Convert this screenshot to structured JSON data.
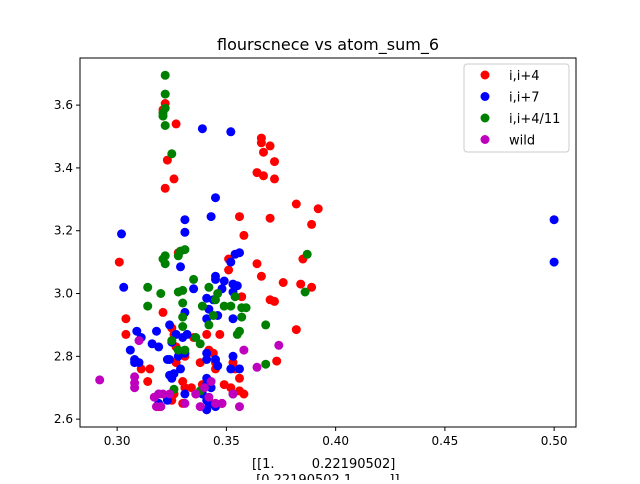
{
  "chart_data": {
    "type": "scatter",
    "title": "flourscnece vs atom_sum_6",
    "xlabel": "",
    "ylabel": "",
    "xlim": [
      0.283,
      0.51
    ],
    "ylim": [
      2.575,
      3.75
    ],
    "xticks": [
      0.3,
      0.35,
      0.4,
      0.45,
      0.5
    ],
    "xtick_labels": [
      "0.30",
      "0.35",
      "0.40",
      "0.45",
      "0.50"
    ],
    "yticks": [
      2.6,
      2.8,
      3.0,
      3.2,
      3.4,
      3.6
    ],
    "ytick_labels": [
      "2.6",
      "2.8",
      "3.0",
      "3.2",
      "3.4",
      "3.6"
    ],
    "grid": false,
    "legend_placement": "top-right",
    "annotation_lines": [
      "[[1.         0.22190502]",
      " [0.22190502 1.        ]]"
    ],
    "series": [
      {
        "name": "i,i+4",
        "color": "#ff0000",
        "points": [
          [
            0.322,
            3.605
          ],
          [
            0.321,
            3.585
          ],
          [
            0.327,
            3.54
          ],
          [
            0.323,
            3.425
          ],
          [
            0.326,
            3.365
          ],
          [
            0.322,
            3.335
          ],
          [
            0.366,
            3.495
          ],
          [
            0.366,
            3.48
          ],
          [
            0.37,
            3.47
          ],
          [
            0.367,
            3.45
          ],
          [
            0.372,
            3.42
          ],
          [
            0.364,
            3.385
          ],
          [
            0.367,
            3.375
          ],
          [
            0.372,
            3.365
          ],
          [
            0.382,
            3.285
          ],
          [
            0.392,
            3.27
          ],
          [
            0.356,
            3.245
          ],
          [
            0.37,
            3.24
          ],
          [
            0.389,
            3.22
          ],
          [
            0.358,
            3.185
          ],
          [
            0.351,
            3.11
          ],
          [
            0.364,
            3.095
          ],
          [
            0.385,
            3.11
          ],
          [
            0.366,
            3.055
          ],
          [
            0.376,
            3.035
          ],
          [
            0.384,
            3.03
          ],
          [
            0.389,
            3.02
          ],
          [
            0.351,
            3.075
          ],
          [
            0.357,
            2.99
          ],
          [
            0.37,
            2.98
          ],
          [
            0.372,
            2.975
          ],
          [
            0.382,
            2.885
          ],
          [
            0.301,
            3.1
          ],
          [
            0.304,
            2.92
          ],
          [
            0.304,
            2.87
          ],
          [
            0.321,
            2.94
          ],
          [
            0.326,
            2.87
          ],
          [
            0.327,
            2.83
          ],
          [
            0.331,
            2.8
          ],
          [
            0.327,
            2.78
          ],
          [
            0.335,
            2.86
          ],
          [
            0.338,
            2.78
          ],
          [
            0.341,
            2.87
          ],
          [
            0.342,
            2.82
          ],
          [
            0.344,
            2.81
          ],
          [
            0.345,
            2.78
          ],
          [
            0.345,
            2.76
          ],
          [
            0.347,
            2.87
          ],
          [
            0.353,
            2.78
          ],
          [
            0.354,
            2.76
          ],
          [
            0.356,
            2.73
          ],
          [
            0.349,
            2.71
          ],
          [
            0.352,
            2.7
          ],
          [
            0.356,
            2.69
          ],
          [
            0.339,
            2.71
          ],
          [
            0.334,
            2.7
          ],
          [
            0.331,
            2.7
          ],
          [
            0.336,
            2.68
          ],
          [
            0.326,
            2.68
          ],
          [
            0.33,
            2.65
          ],
          [
            0.343,
            2.65
          ],
          [
            0.345,
            2.65
          ],
          [
            0.341,
            2.63
          ],
          [
            0.325,
            2.66
          ],
          [
            0.319,
            2.64
          ],
          [
            0.314,
            2.72
          ],
          [
            0.315,
            2.76
          ],
          [
            0.311,
            2.76
          ],
          [
            0.328,
            3.13
          ],
          [
            0.325,
            2.89
          ],
          [
            0.373,
            2.785
          ],
          [
            0.358,
            2.68
          ],
          [
            0.348,
            2.65
          ],
          [
            0.342,
            2.65
          ],
          [
            0.33,
            2.72
          ]
        ]
      },
      {
        "name": "i,i+7",
        "color": "#0000ff",
        "points": [
          [
            0.339,
            3.525
          ],
          [
            0.352,
            3.515
          ],
          [
            0.345,
            3.305
          ],
          [
            0.331,
            3.235
          ],
          [
            0.343,
            3.245
          ],
          [
            0.331,
            3.195
          ],
          [
            0.302,
            3.19
          ],
          [
            0.354,
            3.125
          ],
          [
            0.356,
            3.13
          ],
          [
            0.352,
            3.1
          ],
          [
            0.329,
            3.085
          ],
          [
            0.303,
            3.02
          ],
          [
            0.345,
            3.055
          ],
          [
            0.345,
            3.045
          ],
          [
            0.349,
            3.04
          ],
          [
            0.353,
            3.03
          ],
          [
            0.355,
            3.025
          ],
          [
            0.348,
            3.015
          ],
          [
            0.353,
            3.005
          ],
          [
            0.335,
            3.015
          ],
          [
            0.341,
            2.985
          ],
          [
            0.344,
            2.98
          ],
          [
            0.342,
            2.95
          ],
          [
            0.346,
            2.93
          ],
          [
            0.353,
            2.92
          ],
          [
            0.331,
            2.94
          ],
          [
            0.324,
            2.9
          ],
          [
            0.341,
            2.92
          ],
          [
            0.332,
            2.87
          ],
          [
            0.33,
            2.86
          ],
          [
            0.327,
            2.87
          ],
          [
            0.325,
            2.845
          ],
          [
            0.316,
            2.84
          ],
          [
            0.318,
            2.88
          ],
          [
            0.309,
            2.88
          ],
          [
            0.311,
            2.86
          ],
          [
            0.306,
            2.82
          ],
          [
            0.308,
            2.79
          ],
          [
            0.308,
            2.78
          ],
          [
            0.31,
            2.78
          ],
          [
            0.319,
            2.83
          ],
          [
            0.323,
            2.79
          ],
          [
            0.324,
            2.79
          ],
          [
            0.328,
            2.8
          ],
          [
            0.331,
            2.81
          ],
          [
            0.341,
            2.81
          ],
          [
            0.341,
            2.79
          ],
          [
            0.345,
            2.79
          ],
          [
            0.346,
            2.77
          ],
          [
            0.353,
            2.8
          ],
          [
            0.352,
            2.76
          ],
          [
            0.356,
            2.76
          ],
          [
            0.341,
            2.73
          ],
          [
            0.326,
            2.745
          ],
          [
            0.325,
            2.73
          ],
          [
            0.319,
            2.68
          ],
          [
            0.319,
            2.65
          ],
          [
            0.323,
            2.66
          ],
          [
            0.331,
            2.68
          ],
          [
            0.339,
            2.68
          ],
          [
            0.341,
            2.66
          ],
          [
            0.342,
            2.65
          ],
          [
            0.341,
            2.63
          ],
          [
            0.345,
            2.64
          ],
          [
            0.341,
            2.71
          ],
          [
            0.343,
            2.7
          ],
          [
            0.5,
            3.235
          ],
          [
            0.5,
            3.1
          ],
          [
            0.324,
            2.74
          ],
          [
            0.353,
            2.68
          ],
          [
            0.329,
            2.76
          ]
        ]
      },
      {
        "name": "i,i+4/11",
        "color": "#008000",
        "points": [
          [
            0.322,
            3.695
          ],
          [
            0.322,
            3.635
          ],
          [
            0.322,
            3.59
          ],
          [
            0.321,
            3.575
          ],
          [
            0.321,
            3.565
          ],
          [
            0.322,
            3.535
          ],
          [
            0.325,
            3.445
          ],
          [
            0.329,
            3.135
          ],
          [
            0.331,
            3.14
          ],
          [
            0.322,
            3.12
          ],
          [
            0.321,
            3.11
          ],
          [
            0.322,
            3.095
          ],
          [
            0.328,
            3.12
          ],
          [
            0.314,
            3.02
          ],
          [
            0.32,
            3.0
          ],
          [
            0.328,
            3.005
          ],
          [
            0.33,
            3.01
          ],
          [
            0.335,
            3.045
          ],
          [
            0.342,
            3.02
          ],
          [
            0.346,
            3.0
          ],
          [
            0.345,
            2.98
          ],
          [
            0.349,
            2.96
          ],
          [
            0.352,
            2.96
          ],
          [
            0.357,
            2.955
          ],
          [
            0.314,
            2.96
          ],
          [
            0.33,
            2.97
          ],
          [
            0.339,
            2.96
          ],
          [
            0.344,
            2.93
          ],
          [
            0.357,
            2.925
          ],
          [
            0.33,
            2.925
          ],
          [
            0.33,
            2.895
          ],
          [
            0.336,
            2.86
          ],
          [
            0.342,
            2.9
          ],
          [
            0.338,
            2.84
          ],
          [
            0.325,
            2.85
          ],
          [
            0.328,
            2.82
          ],
          [
            0.331,
            2.82
          ],
          [
            0.355,
            2.87
          ],
          [
            0.356,
            2.88
          ],
          [
            0.368,
            2.9
          ],
          [
            0.386,
            3.005
          ],
          [
            0.387,
            3.125
          ],
          [
            0.354,
            2.99
          ],
          [
            0.359,
            2.955
          ],
          [
            0.368,
            2.775
          ],
          [
            0.338,
            2.69
          ],
          [
            0.353,
            2.68
          ],
          [
            0.326,
            2.695
          ]
        ]
      },
      {
        "name": "wild",
        "color": "#bf00bf",
        "points": [
          [
            0.292,
            2.725
          ],
          [
            0.308,
            2.735
          ],
          [
            0.308,
            2.715
          ],
          [
            0.308,
            2.7
          ],
          [
            0.317,
            2.67
          ],
          [
            0.319,
            2.68
          ],
          [
            0.318,
            2.64
          ],
          [
            0.32,
            2.64
          ],
          [
            0.321,
            2.68
          ],
          [
            0.324,
            2.68
          ],
          [
            0.331,
            2.65
          ],
          [
            0.336,
            2.68
          ],
          [
            0.34,
            2.7
          ],
          [
            0.342,
            2.67
          ],
          [
            0.343,
            2.72
          ],
          [
            0.348,
            2.65
          ],
          [
            0.353,
            2.68
          ],
          [
            0.356,
            2.64
          ],
          [
            0.358,
            2.82
          ],
          [
            0.364,
            2.765
          ],
          [
            0.374,
            2.835
          ],
          [
            0.31,
            2.85
          ],
          [
            0.338,
            2.64
          ],
          [
            0.345,
            2.65
          ]
        ]
      }
    ]
  }
}
